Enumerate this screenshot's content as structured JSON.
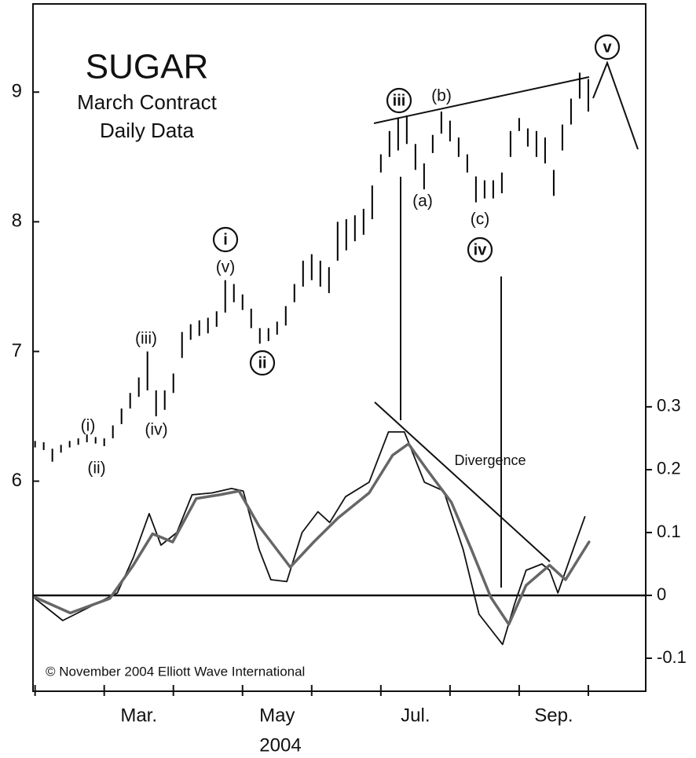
{
  "chart_data": [
    {
      "type": "hilo",
      "title": "SUGAR",
      "subtitle": [
        "March Contract",
        "Daily Data"
      ],
      "source": "© November 2004 Elliott Wave International",
      "xlabel": "2004",
      "xlim": [
        -0.03,
        8.83
      ],
      "xticks": [
        {
          "value": 1.5,
          "label": "Mar."
        },
        {
          "value": 3.5,
          "label": "May"
        },
        {
          "value": 5.5,
          "label": "Jul."
        },
        {
          "value": 7.5,
          "label": "Sep."
        }
      ],
      "x_minor_ticks": [
        0,
        1,
        2,
        3,
        4,
        5,
        6,
        7,
        8
      ],
      "ylim": [
        4.38,
        9.68
      ],
      "yticks": [
        6,
        7,
        8,
        9
      ],
      "color": "#000000",
      "x": [
        0,
        0.125,
        0.25,
        0.375,
        0.5,
        0.625,
        0.75,
        0.875,
        1,
        1.125,
        1.25,
        1.375,
        1.5,
        1.625,
        1.75,
        1.875,
        2,
        2.125,
        2.25,
        2.375,
        2.5,
        2.625,
        2.75,
        2.875,
        3,
        3.125,
        3.25,
        3.375,
        3.5,
        3.625,
        3.75,
        3.875,
        4,
        4.125,
        4.25,
        4.375,
        4.5,
        4.625,
        4.75,
        4.875,
        5,
        5.125,
        5.25,
        5.375,
        5.5,
        5.625,
        5.75,
        5.875,
        6,
        6.125,
        6.25,
        6.375,
        6.5,
        6.625,
        6.75,
        6.875,
        7,
        7.125,
        7.25,
        7.375,
        7.5,
        7.625,
        7.75,
        7.875,
        8
      ],
      "high": [
        6.31,
        6.3,
        6.25,
        6.28,
        6.31,
        6.33,
        6.36,
        6.34,
        6.33,
        6.43,
        6.56,
        6.68,
        6.8,
        7.0,
        6.7,
        6.7,
        6.83,
        7.15,
        7.21,
        7.24,
        7.26,
        7.31,
        7.55,
        7.52,
        7.44,
        7.33,
        7.18,
        7.18,
        7.23,
        7.35,
        7.52,
        7.7,
        7.75,
        7.7,
        7.65,
        8.0,
        8.02,
        8.05,
        8.1,
        8.28,
        8.52,
        8.7,
        8.8,
        8.82,
        8.6,
        8.45,
        8.67,
        8.85,
        8.78,
        8.65,
        8.52,
        8.35,
        8.32,
        8.32,
        8.38,
        8.7,
        8.8,
        8.72,
        8.7,
        8.65,
        8.4,
        8.75,
        8.95,
        9.15,
        9.1
      ],
      "low": [
        6.26,
        6.24,
        6.15,
        6.22,
        6.26,
        6.28,
        6.3,
        6.29,
        6.27,
        6.33,
        6.44,
        6.56,
        6.65,
        6.7,
        6.5,
        6.55,
        6.68,
        6.95,
        7.09,
        7.12,
        7.14,
        7.19,
        7.3,
        7.38,
        7.32,
        7.18,
        7.06,
        7.08,
        7.13,
        7.2,
        7.38,
        7.5,
        7.55,
        7.5,
        7.45,
        7.7,
        7.78,
        7.85,
        7.9,
        8.02,
        8.38,
        8.5,
        8.55,
        8.6,
        8.4,
        8.25,
        8.53,
        8.68,
        8.62,
        8.5,
        8.38,
        8.15,
        8.18,
        8.18,
        8.22,
        8.5,
        8.7,
        8.58,
        8.5,
        8.45,
        8.2,
        8.55,
        8.75,
        8.95,
        8.85
      ],
      "annotations": [
        "(i)",
        "(ii)",
        "(iii)",
        "(iv)",
        "(v)",
        "i",
        "ii",
        "iii",
        "(b)",
        "(a)",
        "(c)",
        "iv",
        "v",
        "Divergence"
      ]
    },
    {
      "type": "line",
      "y2lim": [
        -0.1525,
        0.941
      ],
      "y2ticks": [
        -0.1,
        0,
        0.1,
        0.2,
        0.3
      ],
      "zero_line": true,
      "series": [
        {
          "color": "#111111",
          "axis": "y2",
          "x": [
            0,
            0.4,
            0.85,
            1.19,
            1.42,
            1.65,
            1.82,
            2.05,
            2.27,
            2.56,
            2.84,
            3.01,
            3.24,
            3.41,
            3.64,
            3.86,
            4.09,
            4.26,
            4.49,
            4.83,
            5.11,
            5.34,
            5.63,
            5.91,
            6.19,
            6.42,
            6.76,
            6.93,
            7.1,
            7.33,
            7.44,
            7.56,
            7.78,
            7.95
          ],
          "values": [
            -0.005,
            -0.04,
            -0.015,
            0.004,
            0.06,
            0.13,
            0.08,
            0.1,
            0.16,
            0.163,
            0.17,
            0.166,
            0.073,
            0.025,
            0.022,
            0.1,
            0.133,
            0.116,
            0.157,
            0.18,
            0.26,
            0.26,
            0.18,
            0.166,
            0.073,
            -0.03,
            -0.078,
            -0.015,
            0.04,
            0.05,
            0.04,
            0.004,
            0.073,
            0.125
          ]
        },
        {
          "color": "#666666",
          "axis": "y2",
          "x": [
            0,
            0.51,
            1.08,
            1.42,
            1.7,
            1.99,
            2.33,
            2.67,
            2.95,
            3.24,
            3.69,
            4.03,
            4.38,
            4.83,
            5.17,
            5.4,
            5.68,
            6.02,
            6.31,
            6.59,
            6.85,
            7.1,
            7.44,
            7.67,
            8.01
          ],
          "values": [
            -0.003,
            -0.028,
            -0.005,
            0.048,
            0.098,
            0.085,
            0.154,
            0.16,
            0.166,
            0.11,
            0.045,
            0.085,
            0.123,
            0.163,
            0.223,
            0.241,
            0.198,
            0.148,
            0.073,
            -0.003,
            -0.046,
            0.016,
            0.048,
            0.025,
            0.085
          ]
        }
      ]
    }
  ]
}
